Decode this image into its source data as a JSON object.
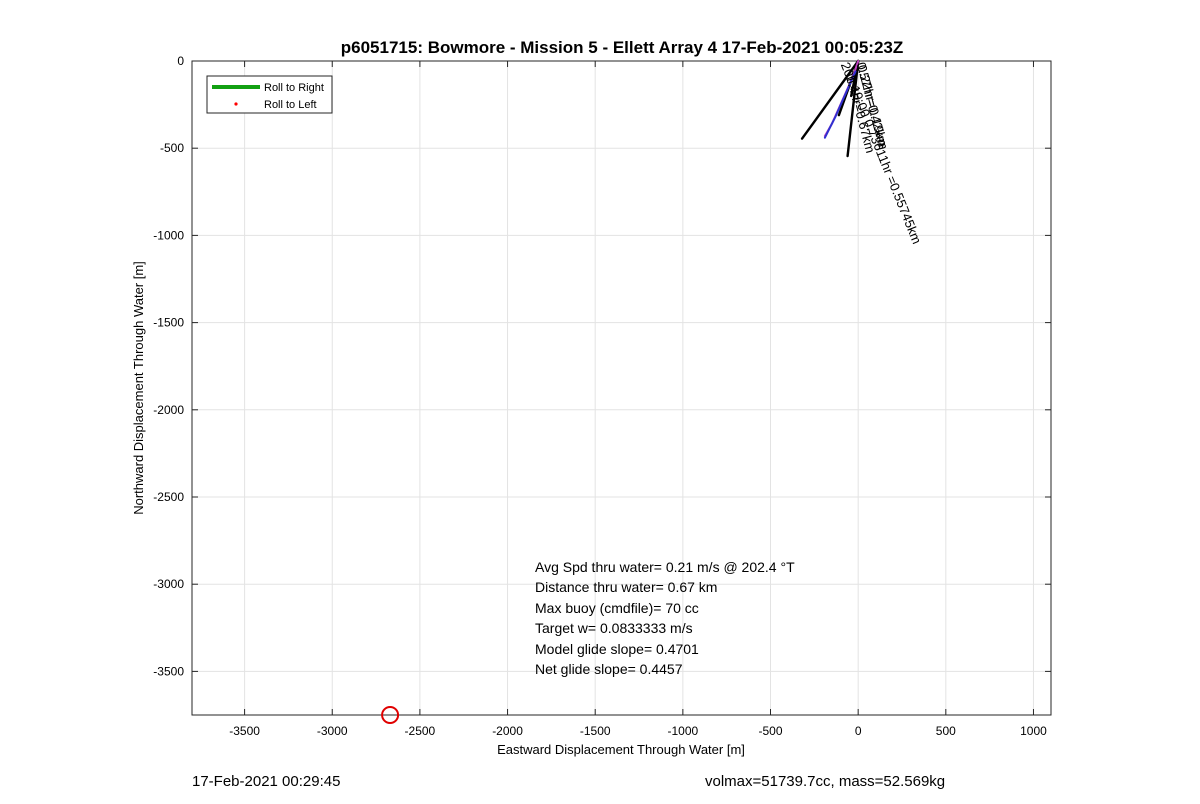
{
  "chart_data": {
    "type": "line",
    "title": "p6051715: Bowmore - Mission 5 - Ellett Array 4 17-Feb-2021 00:05:23Z",
    "xlabel": "Eastward Displacement Through Water [m]",
    "ylabel": "Northward Displacement Through Water [m]",
    "xlim": [
      -3800,
      1100
    ],
    "ylim": [
      -3750,
      0
    ],
    "xticks": [
      -3500,
      -3000,
      -2500,
      -2000,
      -1500,
      -1000,
      -500,
      0,
      500,
      1000
    ],
    "yticks": [
      0,
      -500,
      -1000,
      -1500,
      -2000,
      -2500,
      -3000,
      -3500
    ],
    "grid": true,
    "legend": {
      "placement": "top-left",
      "entries": [
        {
          "label": "Roll to Right",
          "color": "#12a012",
          "style": "line"
        },
        {
          "label": "Roll to Left",
          "color": "#ff0000",
          "style": "dot"
        }
      ]
    },
    "series": [
      {
        "color": "#000000",
        "x": [
          0,
          -320
        ],
        "y": [
          0,
          -445
        ]
      },
      {
        "color": "#000000",
        "x": [
          0,
          -60
        ],
        "y": [
          0,
          -545
        ]
      },
      {
        "color": "#000000",
        "x": [
          0,
          -110
        ],
        "y": [
          0,
          -310
        ]
      },
      {
        "color": "#000000",
        "x": [
          0,
          -40
        ],
        "y": [
          0,
          -200
        ]
      },
      {
        "color": "#c040c0",
        "x": [
          0,
          -30,
          -70,
          -110,
          -150,
          -190
        ],
        "y": [
          0,
          -90,
          -180,
          -270,
          -360,
          -430
        ]
      },
      {
        "color": "#3030d0",
        "x": [
          -15,
          -55,
          -95,
          -130,
          -165,
          -190
        ],
        "y": [
          -60,
          -150,
          -240,
          -320,
          -390,
          -440
        ]
      }
    ],
    "annotations": [
      {
        "text": "0.57hr=0.42km",
        "x": -10,
        "y": -15,
        "angle": 75
      },
      {
        "text": "0.22hr=0.19km",
        "x": -5,
        "y": -30,
        "angle": 75
      },
      {
        "text": "1.4hr=0.67km",
        "x": -70,
        "y": -90,
        "angle": 75
      },
      {
        "text": "20h:19:00 0.73611hr =0.55745km",
        "x": -100,
        "y": -20,
        "angle": 68
      }
    ],
    "marker": {
      "x": -2670,
      "y": -3750,
      "color": "#e00000",
      "shape": "circle"
    },
    "stats": [
      "Avg Spd thru water=  0.21 m/s @ 202.4 °T",
      "Distance thru water=  0.67 km",
      "Max buoy (cmdfile)= 70 cc",
      "Target w= 0.0833333 m/s",
      "Model glide slope= 0.4701",
      "Net glide slope= 0.4457"
    ]
  },
  "footer": {
    "timestamp": "17-Feb-2021 00:29:45",
    "summary": "volmax=51739.7cc, mass=52.569kg"
  }
}
